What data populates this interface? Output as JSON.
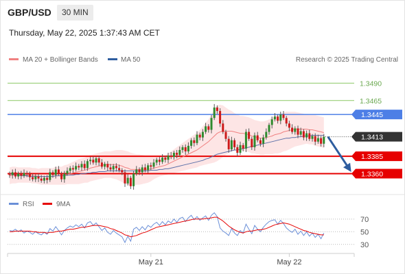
{
  "header": {
    "symbol": "GBP/USD",
    "timeframe": "30 MIN",
    "timestamp": "Thursday, May 22, 2025 1:37:43 AM CET"
  },
  "legend": {
    "ma20": "MA 20 + Bollinger Bands",
    "ma50": "MA 50",
    "credit": "Research © 2025 Trading Central"
  },
  "rsi_legend": {
    "rsi": "RSI",
    "ma": "9MA"
  },
  "colors": {
    "green_level": "#8cc864",
    "blue_level": "#4d7fe6",
    "red_level": "#e60000",
    "dark_label": "#333333",
    "bull": "#2e8a2e",
    "bear": "#cc1a1a",
    "ma20": "#f08080",
    "ma50": "#5a6fa8",
    "band": "#fde1e1",
    "arrow": "#2e5d9f",
    "rsi": "#6a8fd8",
    "rsi_ma": "#e60000"
  },
  "chart_data": [
    {
      "type": "candlestick",
      "ylim": [
        1.3332,
        1.3513
      ],
      "levels": [
        {
          "value": 1.349,
          "label": "1.3490",
          "style": "green-text"
        },
        {
          "value": 1.3465,
          "label": "1.3465",
          "style": "green-text"
        },
        {
          "value": 1.3445,
          "label": "1.3445",
          "style": "blue-box"
        },
        {
          "value": 1.3413,
          "label": "1.3413",
          "style": "dark-box"
        },
        {
          "value": 1.3385,
          "label": "1.3385",
          "style": "red-box"
        },
        {
          "value": 1.336,
          "label": "1.3360",
          "style": "red-box"
        }
      ],
      "close": [
        1.3358,
        1.3362,
        1.3356,
        1.336,
        1.3357,
        1.3361,
        1.3359,
        1.3355,
        1.3352,
        1.3356,
        1.3353,
        1.335,
        1.3354,
        1.3351,
        1.3362,
        1.3358,
        1.3366,
        1.336,
        1.3352,
        1.336,
        1.3364,
        1.3368,
        1.3366,
        1.3371,
        1.3369,
        1.3374,
        1.3368,
        1.3378,
        1.338,
        1.3376,
        1.3382,
        1.3376,
        1.337,
        1.3374,
        1.3369,
        1.3366,
        1.3371,
        1.3368,
        1.3365,
        1.3362,
        1.3346,
        1.3354,
        1.3342,
        1.336,
        1.3366,
        1.3362,
        1.3369,
        1.3365,
        1.3372,
        1.337,
        1.3376,
        1.338,
        1.3377,
        1.3383,
        1.338,
        1.3386,
        1.3384,
        1.339,
        1.3387,
        1.3394,
        1.3398,
        1.3392,
        1.34,
        1.3408,
        1.3404,
        1.3416,
        1.3412,
        1.342,
        1.3428,
        1.3423,
        1.344,
        1.3455,
        1.345,
        1.3432,
        1.342,
        1.341,
        1.3395,
        1.3408,
        1.3398,
        1.339,
        1.3401,
        1.3396,
        1.342,
        1.341,
        1.3398,
        1.3415,
        1.3408,
        1.3403,
        1.3412,
        1.342,
        1.343,
        1.3438,
        1.3442,
        1.3436,
        1.3445,
        1.344,
        1.3432,
        1.3426,
        1.342,
        1.3425,
        1.3416,
        1.3421,
        1.3412,
        1.3418,
        1.341,
        1.3414,
        1.3406,
        1.3411,
        1.3403,
        1.3413
      ],
      "ma20": [
        1.3357,
        1.3358,
        1.3358,
        1.3358,
        1.3358,
        1.3358,
        1.3358,
        1.3358,
        1.3357,
        1.3357,
        1.3356,
        1.3356,
        1.3356,
        1.3356,
        1.3356,
        1.3356,
        1.3357,
        1.3357,
        1.3357,
        1.3358,
        1.3359,
        1.336,
        1.3361,
        1.3362,
        1.3363,
        1.3364,
        1.3365,
        1.3366,
        1.3368,
        1.3369,
        1.337,
        1.3371,
        1.3372,
        1.3373,
        1.3373,
        1.3373,
        1.3373,
        1.3373,
        1.3372,
        1.3371,
        1.3369,
        1.3368,
        1.3366,
        1.3366,
        1.3366,
        1.3366,
        1.3366,
        1.3366,
        1.3366,
        1.3367,
        1.3368,
        1.3369,
        1.337,
        1.3371,
        1.3372,
        1.3374,
        1.3376,
        1.3378,
        1.338,
        1.3382,
        1.3384,
        1.3386,
        1.3388,
        1.339,
        1.3392,
        1.3394,
        1.3397,
        1.34,
        1.3403,
        1.3406,
        1.341,
        1.3414,
        1.3418,
        1.342,
        1.3421,
        1.3421,
        1.3421,
        1.3421,
        1.342,
        1.3419,
        1.3418,
        1.3418,
        1.3417,
        1.3416,
        1.3414,
        1.3413,
        1.3412,
        1.3411,
        1.3411,
        1.3412,
        1.3413,
        1.3414,
        1.3416,
        1.3417,
        1.3418,
        1.342,
        1.3421,
        1.3422,
        1.3423,
        1.3424,
        1.3424,
        1.3424,
        1.3424,
        1.3424,
        1.3423,
        1.3423,
        1.3422,
        1.3421,
        1.342,
        1.3419
      ],
      "ma50": [
        1.336,
        1.3359,
        1.3358,
        1.3358,
        1.3357,
        1.3357,
        1.3357,
        1.3356,
        1.3356,
        1.3356,
        1.3356,
        1.3356,
        1.3356,
        1.3356,
        1.3356,
        1.3356,
        1.3357,
        1.3357,
        1.3357,
        1.3357,
        1.3358,
        1.3358,
        1.3358,
        1.3359,
        1.3359,
        1.336,
        1.336,
        1.3361,
        1.3361,
        1.3362,
        1.3362,
        1.3363,
        1.3363,
        1.3363,
        1.3364,
        1.3364,
        1.3364,
        1.3364,
        1.3364,
        1.3364,
        1.3364,
        1.3364,
        1.3364,
        1.3364,
        1.3364,
        1.3364,
        1.3364,
        1.3364,
        1.3364,
        1.3365,
        1.3365,
        1.3365,
        1.3366,
        1.3366,
        1.3367,
        1.3367,
        1.3368,
        1.3369,
        1.337,
        1.3371,
        1.3372,
        1.3373,
        1.3374,
        1.3375,
        1.3376,
        1.3377,
        1.3378,
        1.3379,
        1.3381,
        1.3382,
        1.3384,
        1.3386,
        1.3388,
        1.3389,
        1.339,
        1.3391,
        1.3392,
        1.3393,
        1.3394,
        1.3394,
        1.3395,
        1.3396,
        1.3397,
        1.3398,
        1.3399,
        1.34,
        1.3401,
        1.3402,
        1.3403,
        1.3404,
        1.3405,
        1.3406,
        1.3407,
        1.3408,
        1.3409,
        1.341,
        1.3411,
        1.3411,
        1.3412,
        1.3412,
        1.3413,
        1.3413,
        1.3414,
        1.3414,
        1.3414,
        1.3415,
        1.3415,
        1.3415,
        1.3415,
        1.3415
      ],
      "band_width": [
        0.0012,
        0.0012,
        0.0012,
        0.0011,
        0.0011,
        0.0011,
        0.0011,
        0.0011,
        0.0011,
        0.0011,
        0.0011,
        0.0012,
        0.0012,
        0.0012,
        0.0012,
        0.0012,
        0.0013,
        0.0013,
        0.0013,
        0.0014,
        0.0014,
        0.0015,
        0.0016,
        0.0017,
        0.0018,
        0.0018,
        0.0018,
        0.0019,
        0.0019,
        0.0019,
        0.0019,
        0.0019,
        0.0019,
        0.0019,
        0.0019,
        0.0019,
        0.002,
        0.0021,
        0.0022,
        0.0023,
        0.0024,
        0.0024,
        0.0024,
        0.0023,
        0.0022,
        0.0022,
        0.0021,
        0.002,
        0.0019,
        0.0018,
        0.0016,
        0.0015,
        0.0014,
        0.0014,
        0.0014,
        0.0015,
        0.0016,
        0.0017,
        0.0018,
        0.0019,
        0.002,
        0.0021,
        0.0022,
        0.0023,
        0.0024,
        0.0025,
        0.0026,
        0.0028,
        0.003,
        0.0032,
        0.0035,
        0.0038,
        0.004,
        0.0039,
        0.0037,
        0.0034,
        0.0031,
        0.0029,
        0.0027,
        0.0026,
        0.0025,
        0.0025,
        0.0025,
        0.0025,
        0.0025,
        0.0024,
        0.0024,
        0.0024,
        0.0024,
        0.0024,
        0.0025,
        0.0026,
        0.0027,
        0.0028,
        0.0028,
        0.0028,
        0.0028,
        0.0027,
        0.0026,
        0.0025,
        0.0024,
        0.0023,
        0.0022,
        0.0021,
        0.0021,
        0.0021,
        0.0022,
        0.0022,
        0.0022,
        0.0022
      ],
      "projection": {
        "from": 1.3413,
        "to": 1.3365
      },
      "x_ticks": [
        {
          "index": 49,
          "label": "May 21"
        },
        {
          "index": 97,
          "label": "May 22"
        }
      ]
    },
    {
      "type": "line",
      "name": "RSI",
      "ylim": [
        20,
        85
      ],
      "y_ticks": [
        70,
        50,
        30
      ],
      "rsi": [
        52,
        51,
        54,
        50,
        53,
        48,
        51,
        49,
        46,
        50,
        47,
        45,
        49,
        46,
        55,
        51,
        58,
        52,
        45,
        52,
        56,
        59,
        57,
        61,
        58,
        62,
        56,
        64,
        66,
        60,
        64,
        58,
        52,
        56,
        49,
        46,
        52,
        48,
        45,
        42,
        33,
        43,
        35,
        54,
        57,
        52,
        58,
        53,
        60,
        57,
        62,
        65,
        60,
        66,
        61,
        67,
        64,
        70,
        65,
        71,
        73,
        66,
        72,
        76,
        69,
        74,
        68,
        72,
        75,
        68,
        76,
        80,
        74,
        56,
        51,
        48,
        44,
        55,
        48,
        44,
        52,
        48,
        62,
        54,
        47,
        60,
        54,
        50,
        57,
        62,
        66,
        68,
        69,
        62,
        68,
        63,
        56,
        52,
        49,
        54,
        46,
        51,
        44,
        50,
        43,
        48,
        41,
        46,
        39,
        48
      ],
      "rsi_ma": [
        50,
        50,
        51,
        51,
        51,
        51,
        51,
        51,
        50,
        50,
        49,
        49,
        49,
        48,
        49,
        49,
        50,
        51,
        51,
        52,
        53,
        54,
        54,
        55,
        56,
        57,
        57,
        58,
        59,
        60,
        60,
        60,
        59,
        58,
        57,
        55,
        54,
        52,
        50,
        48,
        45,
        44,
        42,
        43,
        44,
        46,
        48,
        49,
        51,
        53,
        55,
        57,
        58,
        59,
        60,
        61,
        62,
        63,
        64,
        65,
        66,
        67,
        68,
        69,
        70,
        70,
        70,
        70,
        71,
        71,
        72,
        73,
        73,
        70,
        67,
        63,
        59,
        56,
        53,
        51,
        49,
        48,
        50,
        51,
        51,
        52,
        53,
        53,
        54,
        55,
        57,
        59,
        61,
        62,
        63,
        64,
        63,
        62,
        60,
        58,
        56,
        54,
        52,
        51,
        49,
        48,
        47,
        46,
        45,
        45
      ]
    }
  ]
}
